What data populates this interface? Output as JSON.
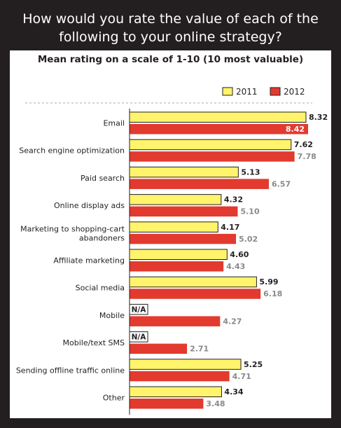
{
  "title_line1": "How would you rate the value of each of the",
  "title_line2": "following to your online strategy?",
  "chart_data": {
    "type": "bar",
    "orientation": "horizontal",
    "title": "How would you rate the value of each of the following to your online strategy?",
    "subtitle": "Mean rating on a scale of 1-10 (10 most valuable)",
    "categories": [
      [
        "Email"
      ],
      [
        "Search engine optimization"
      ],
      [
        "Paid search"
      ],
      [
        "Online display ads"
      ],
      [
        "Marketing to shopping-cart",
        "abandoners"
      ],
      [
        "Affiliate marketing"
      ],
      [
        "Social media"
      ],
      [
        "Mobile"
      ],
      [
        "Mobile/text SMS"
      ],
      [
        "Sending offline traffic online"
      ],
      [
        "Other"
      ]
    ],
    "series": [
      {
        "name": "2011",
        "color": "#fff46b",
        "values": [
          8.32,
          7.62,
          5.13,
          4.32,
          4.17,
          4.6,
          5.99,
          null,
          null,
          5.25,
          4.34
        ],
        "labels": [
          "8.32",
          "7.62",
          "5.13",
          "4.32",
          "4.17",
          "4.60",
          "5.99",
          "N/A",
          "N/A",
          "5.25",
          "4.34"
        ]
      },
      {
        "name": "2012",
        "color": "#e23a2e",
        "values": [
          8.42,
          7.78,
          6.57,
          5.1,
          5.02,
          4.43,
          6.18,
          4.27,
          2.71,
          4.71,
          3.48
        ],
        "labels": [
          "8.42",
          "7.78",
          "6.57",
          "5.10",
          "5.02",
          "4.43",
          "6.18",
          "4.27",
          "2.71",
          "4.71",
          "3.48"
        ]
      }
    ],
    "legend_position": "top-right",
    "grid": false
  }
}
